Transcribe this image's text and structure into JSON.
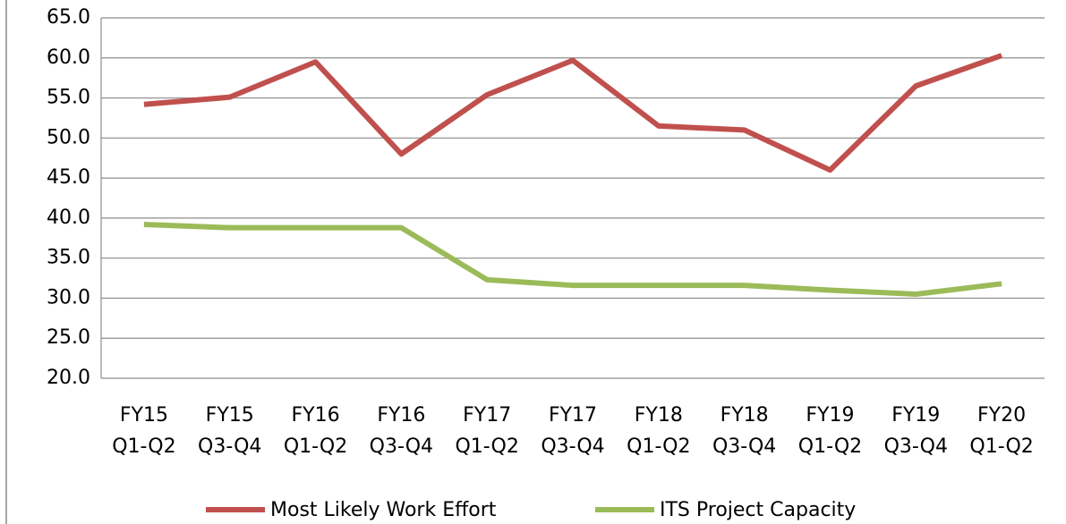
{
  "chart_data": {
    "type": "line",
    "categories": [
      "FY15 Q1-Q2",
      "FY15 Q3-Q4",
      "FY16 Q1-Q2",
      "FY16 Q3-Q4",
      "FY17 Q1-Q2",
      "FY17 Q3-Q4",
      "FY18 Q1-Q2",
      "FY18 Q3-Q4",
      "FY19 Q1-Q2",
      "FY19 Q3-Q4",
      "FY20 Q1-Q2"
    ],
    "series": [
      {
        "name": "Most Likely Work Effort",
        "color": "#c0504d",
        "values": [
          54.2,
          55.1,
          59.5,
          48.0,
          55.4,
          59.7,
          51.5,
          51.0,
          46.0,
          56.5,
          60.3
        ]
      },
      {
        "name": "ITS Project Capacity",
        "color": "#9bbb59",
        "values": [
          39.2,
          38.8,
          38.8,
          38.8,
          32.3,
          31.6,
          31.6,
          31.6,
          31.0,
          30.5,
          31.8
        ]
      }
    ],
    "ylim": [
      20,
      65
    ],
    "yticks": [
      {
        "value": 20,
        "label": "20.0"
      },
      {
        "value": 25,
        "label": "25.0"
      },
      {
        "value": 30,
        "label": "30.0"
      },
      {
        "value": 35,
        "label": "35.0"
      },
      {
        "value": 40,
        "label": "40.0"
      },
      {
        "value": 45,
        "label": "45.0"
      },
      {
        "value": 50,
        "label": "50.0"
      },
      {
        "value": 55,
        "label": "55.0"
      },
      {
        "value": 60,
        "label": "60.0"
      },
      {
        "value": 65,
        "label": "65.0"
      }
    ],
    "grid": true,
    "legend": "bottom"
  }
}
